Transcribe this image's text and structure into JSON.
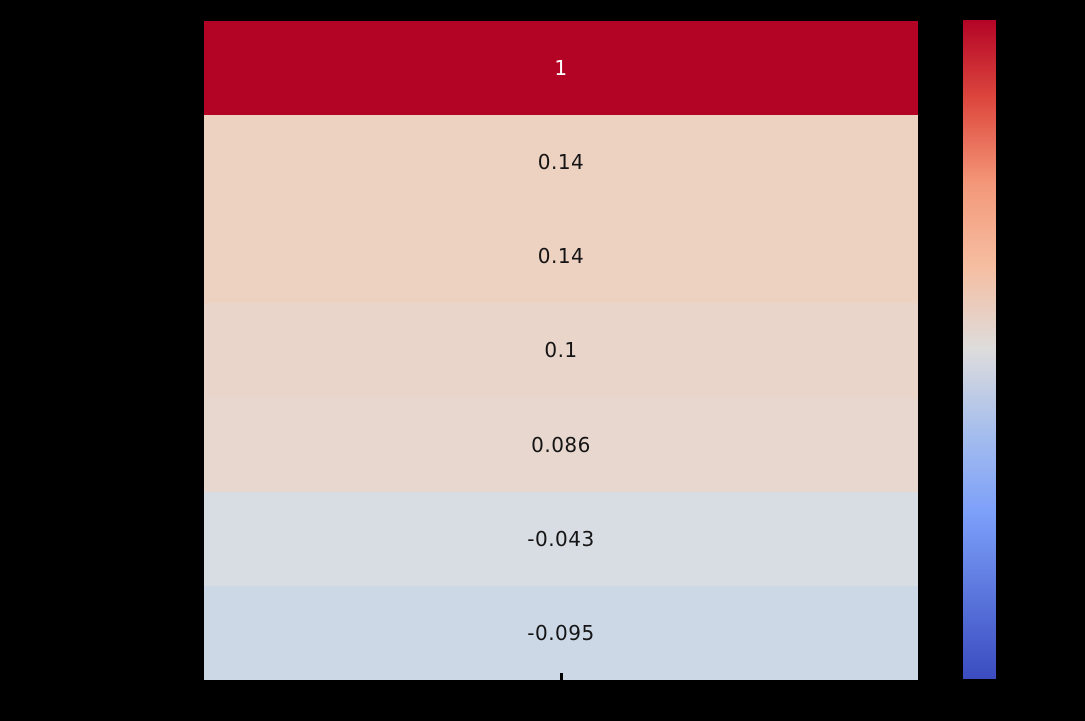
{
  "figure": {
    "background_color": "#000000",
    "title": "",
    "axis_labels_visible": false,
    "tick_labels_visible": false
  },
  "chart_data": {
    "type": "heatmap",
    "orientation": "single-column",
    "title": "",
    "xlabel": "",
    "ylabel": "",
    "annotations_visible": true,
    "values": [
      1,
      0.14,
      0.14,
      0.1,
      0.086,
      -0.043,
      -0.095
    ],
    "rows": [
      {
        "value": 1,
        "label": "1",
        "color": "#B40426",
        "text_color": "#FFFFFF"
      },
      {
        "value": 0.14,
        "label": "0.14",
        "color": "#EDD1C1",
        "text_color": "#141414"
      },
      {
        "value": 0.14,
        "label": "0.14",
        "color": "#EDD1C1",
        "text_color": "#141414"
      },
      {
        "value": 0.1,
        "label": "0.1",
        "color": "#E9D5CA",
        "text_color": "#141414"
      },
      {
        "value": 0.086,
        "label": "0.086",
        "color": "#E7D7CE",
        "text_color": "#141414"
      },
      {
        "value": -0.043,
        "label": "-0.043",
        "color": "#D8DCE3",
        "text_color": "#141414"
      },
      {
        "value": -0.095,
        "label": "-0.095",
        "color": "#CDD8E7",
        "text_color": "#141414"
      }
    ],
    "x_ticks": {
      "count": 1,
      "position": "bottom-center",
      "color": "#000000"
    },
    "colorbar": {
      "position": "right",
      "colormap": "coolwarm",
      "range_estimate": {
        "vmin": -1,
        "vmax": 1
      },
      "tick_labels": [],
      "stops_top_to_bottom": [
        "#B40426",
        "#DE4A3F",
        "#F4987A",
        "#F6BEA1",
        "#DDDCDC",
        "#A6BEED",
        "#7C9FF9",
        "#5A75DC",
        "#3B4CC0"
      ]
    }
  }
}
